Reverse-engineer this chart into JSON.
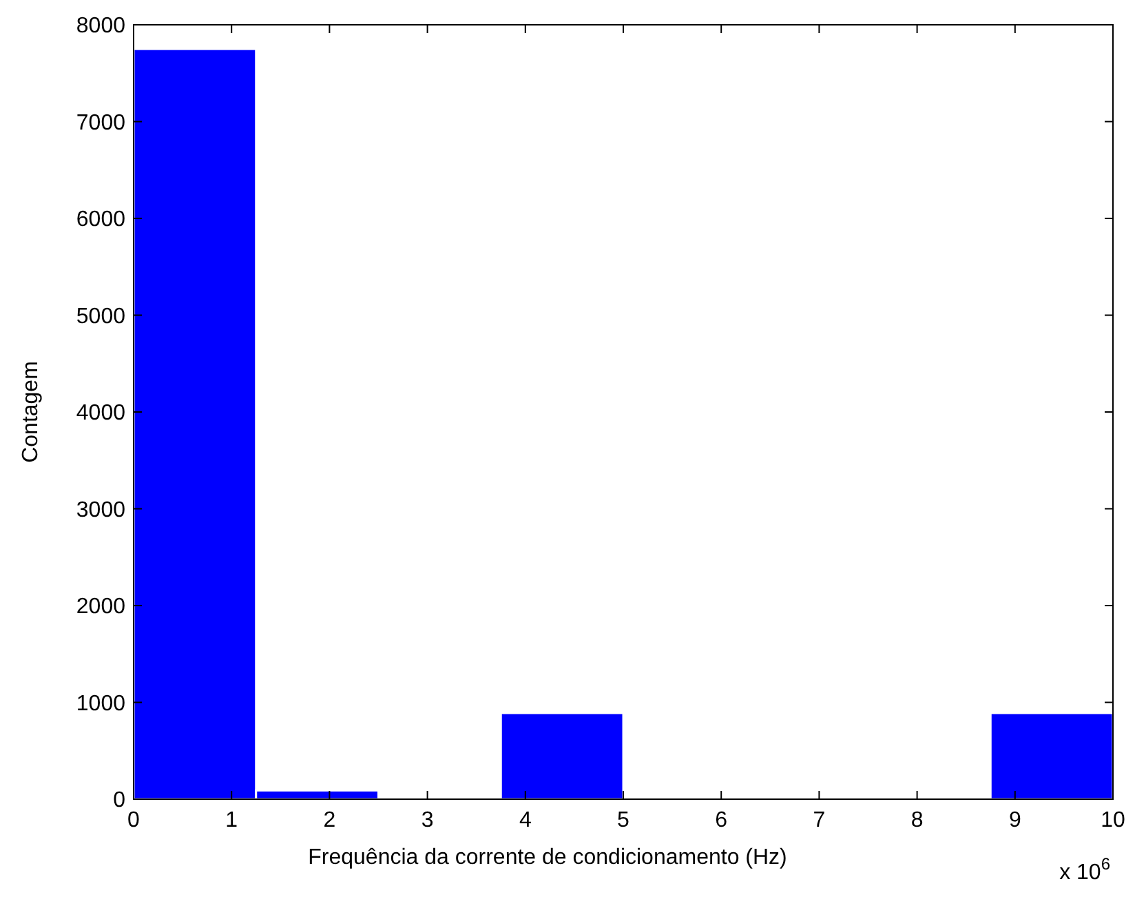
{
  "chart_data": {
    "type": "histogram",
    "xlabel": "Frequência da corrente de condicionamento (Hz)",
    "ylabel": "Contagem",
    "bins": [
      0,
      1.25,
      2.5,
      3.75,
      5,
      6.25,
      7.5,
      8.75,
      10
    ],
    "values": [
      7750,
      90,
      0,
      890,
      0,
      0,
      0,
      890
    ],
    "color": "#0000ff",
    "xlim": [
      0,
      10
    ],
    "xticks": [
      0,
      1,
      2,
      3,
      4,
      5,
      6,
      7,
      8,
      9,
      10
    ],
    "ylim": [
      0,
      8000
    ],
    "yticks": [
      0,
      1000,
      2000,
      3000,
      4000,
      5000,
      6000,
      7000,
      8000
    ],
    "annotations": [
      "x 10$^{6}$"
    ]
  }
}
